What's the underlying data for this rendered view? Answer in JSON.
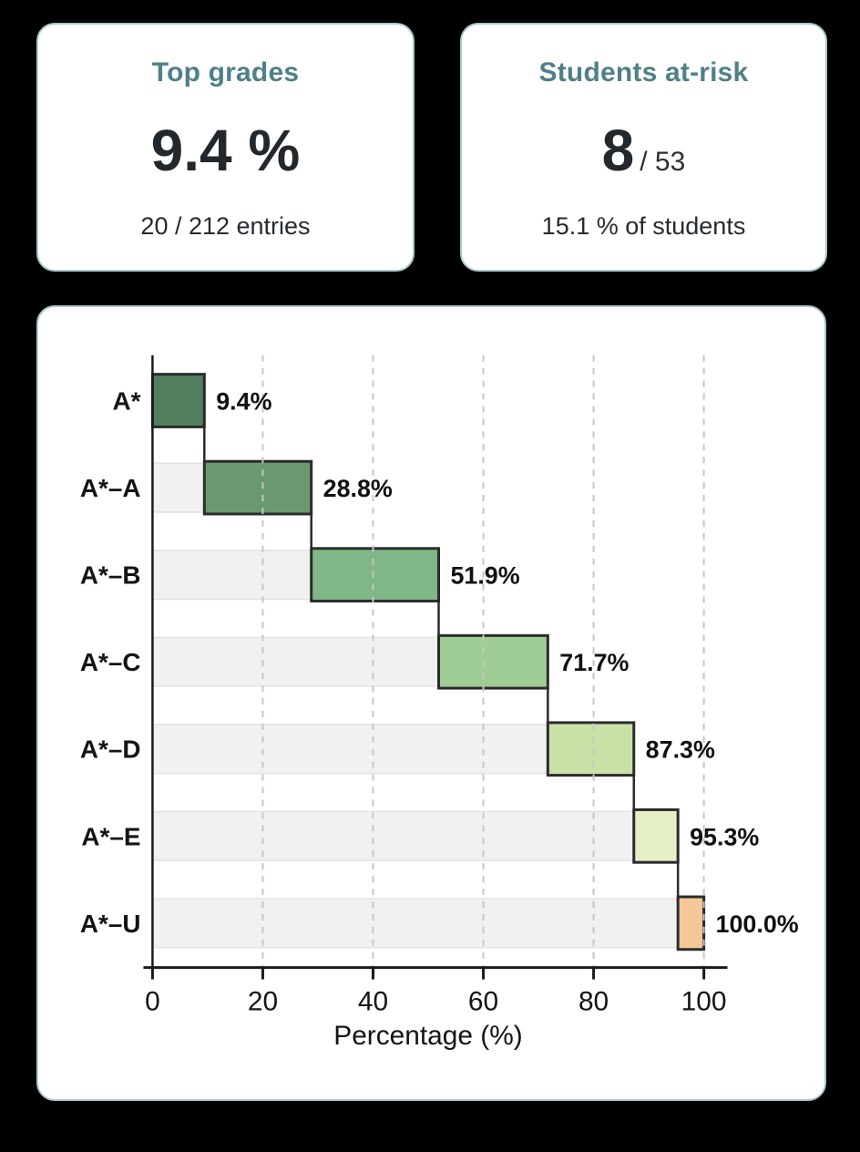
{
  "page": {
    "background": "#000000"
  },
  "theme": {
    "accent_teal": "#4f8088",
    "card_border": "#a9c7cd",
    "card_background": "#ffffff",
    "text_dark": "#23282d",
    "bar_border": "#2b2b2b",
    "band_fill": "#f1f1f2",
    "band_border": "#e3e3e3",
    "grid_color": "#c6c6c6",
    "axis_color": "#1a1a1a"
  },
  "cards": {
    "top_grades": {
      "title": "Top grades",
      "value": "9.4 %",
      "subtitle": "20 / 212 entries"
    },
    "students_at_risk": {
      "title": "Students at-risk",
      "value": "8",
      "value_suffix": "/ 53",
      "subtitle": "15.1 % of students"
    }
  },
  "chart_data": {
    "type": "bar",
    "subtype": "horizontal-waterfall-cumulative",
    "title": "",
    "categories": [
      "A*",
      "A*–A",
      "A*–B",
      "A*–C",
      "A*–D",
      "A*–E",
      "A*–U"
    ],
    "segment_starts": [
      0,
      9.4,
      28.8,
      51.9,
      71.7,
      87.3,
      95.3
    ],
    "cumulative_values": [
      9.4,
      28.8,
      51.9,
      71.7,
      87.3,
      95.3,
      100.0
    ],
    "value_labels": [
      "9.4%",
      "28.8%",
      "51.9%",
      "71.7%",
      "87.3%",
      "95.3%",
      "100.0%"
    ],
    "bar_colors": [
      "#527e5e",
      "#6a9970",
      "#7fb786",
      "#a0cc96",
      "#c9e0a6",
      "#e4efc6",
      "#f5c796"
    ],
    "xlabel": "Percentage (%)",
    "xticks": [
      0,
      20,
      40,
      60,
      80,
      100
    ],
    "xlim": [
      0,
      106
    ],
    "grid": "dashed-vertical-on-top",
    "legend": "none"
  }
}
